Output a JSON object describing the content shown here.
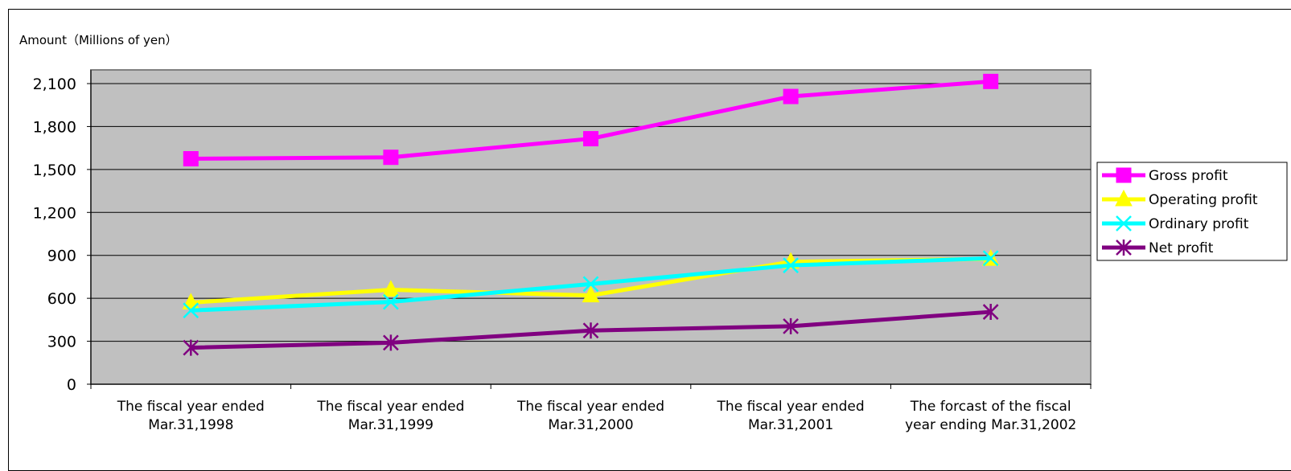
{
  "chart_data": {
    "type": "line",
    "ylabel": "Amount（Millions of yen）",
    "ylim": [
      0,
      2100
    ],
    "yticks": [
      0,
      300,
      600,
      900,
      1200,
      1500,
      1800,
      2100
    ],
    "ytick_labels": [
      "0",
      "300",
      "600",
      "900",
      "1,200",
      "1,500",
      "1,800",
      "2,100"
    ],
    "categories": [
      [
        "The fiscal year ended",
        "Mar.31,1998"
      ],
      [
        "The fiscal year ended",
        "Mar.31,1999"
      ],
      [
        "The fiscal year ended",
        "Mar.31,2000"
      ],
      [
        "The fiscal year ended",
        "Mar.31,2001"
      ],
      [
        "The forcast of the fiscal",
        "year ending Mar.31,2002"
      ]
    ],
    "grid": true,
    "legend_position": "right",
    "plot_background": "#c0c0c0",
    "series": [
      {
        "name": "Gross profit",
        "color": "#ff00ff",
        "marker": "square",
        "values": [
          1575,
          1585,
          1715,
          2010,
          2115
        ]
      },
      {
        "name": "Operating profit",
        "color": "#ffff00",
        "marker": "triangle",
        "values": [
          570,
          660,
          620,
          855,
          875
        ]
      },
      {
        "name": "Ordinary profit",
        "color": "#00ffff",
        "marker": "x",
        "values": [
          515,
          575,
          700,
          830,
          880
        ]
      },
      {
        "name": "Net profit",
        "color": "#800080",
        "marker": "asterisk",
        "values": [
          255,
          290,
          375,
          405,
          505
        ]
      }
    ]
  }
}
